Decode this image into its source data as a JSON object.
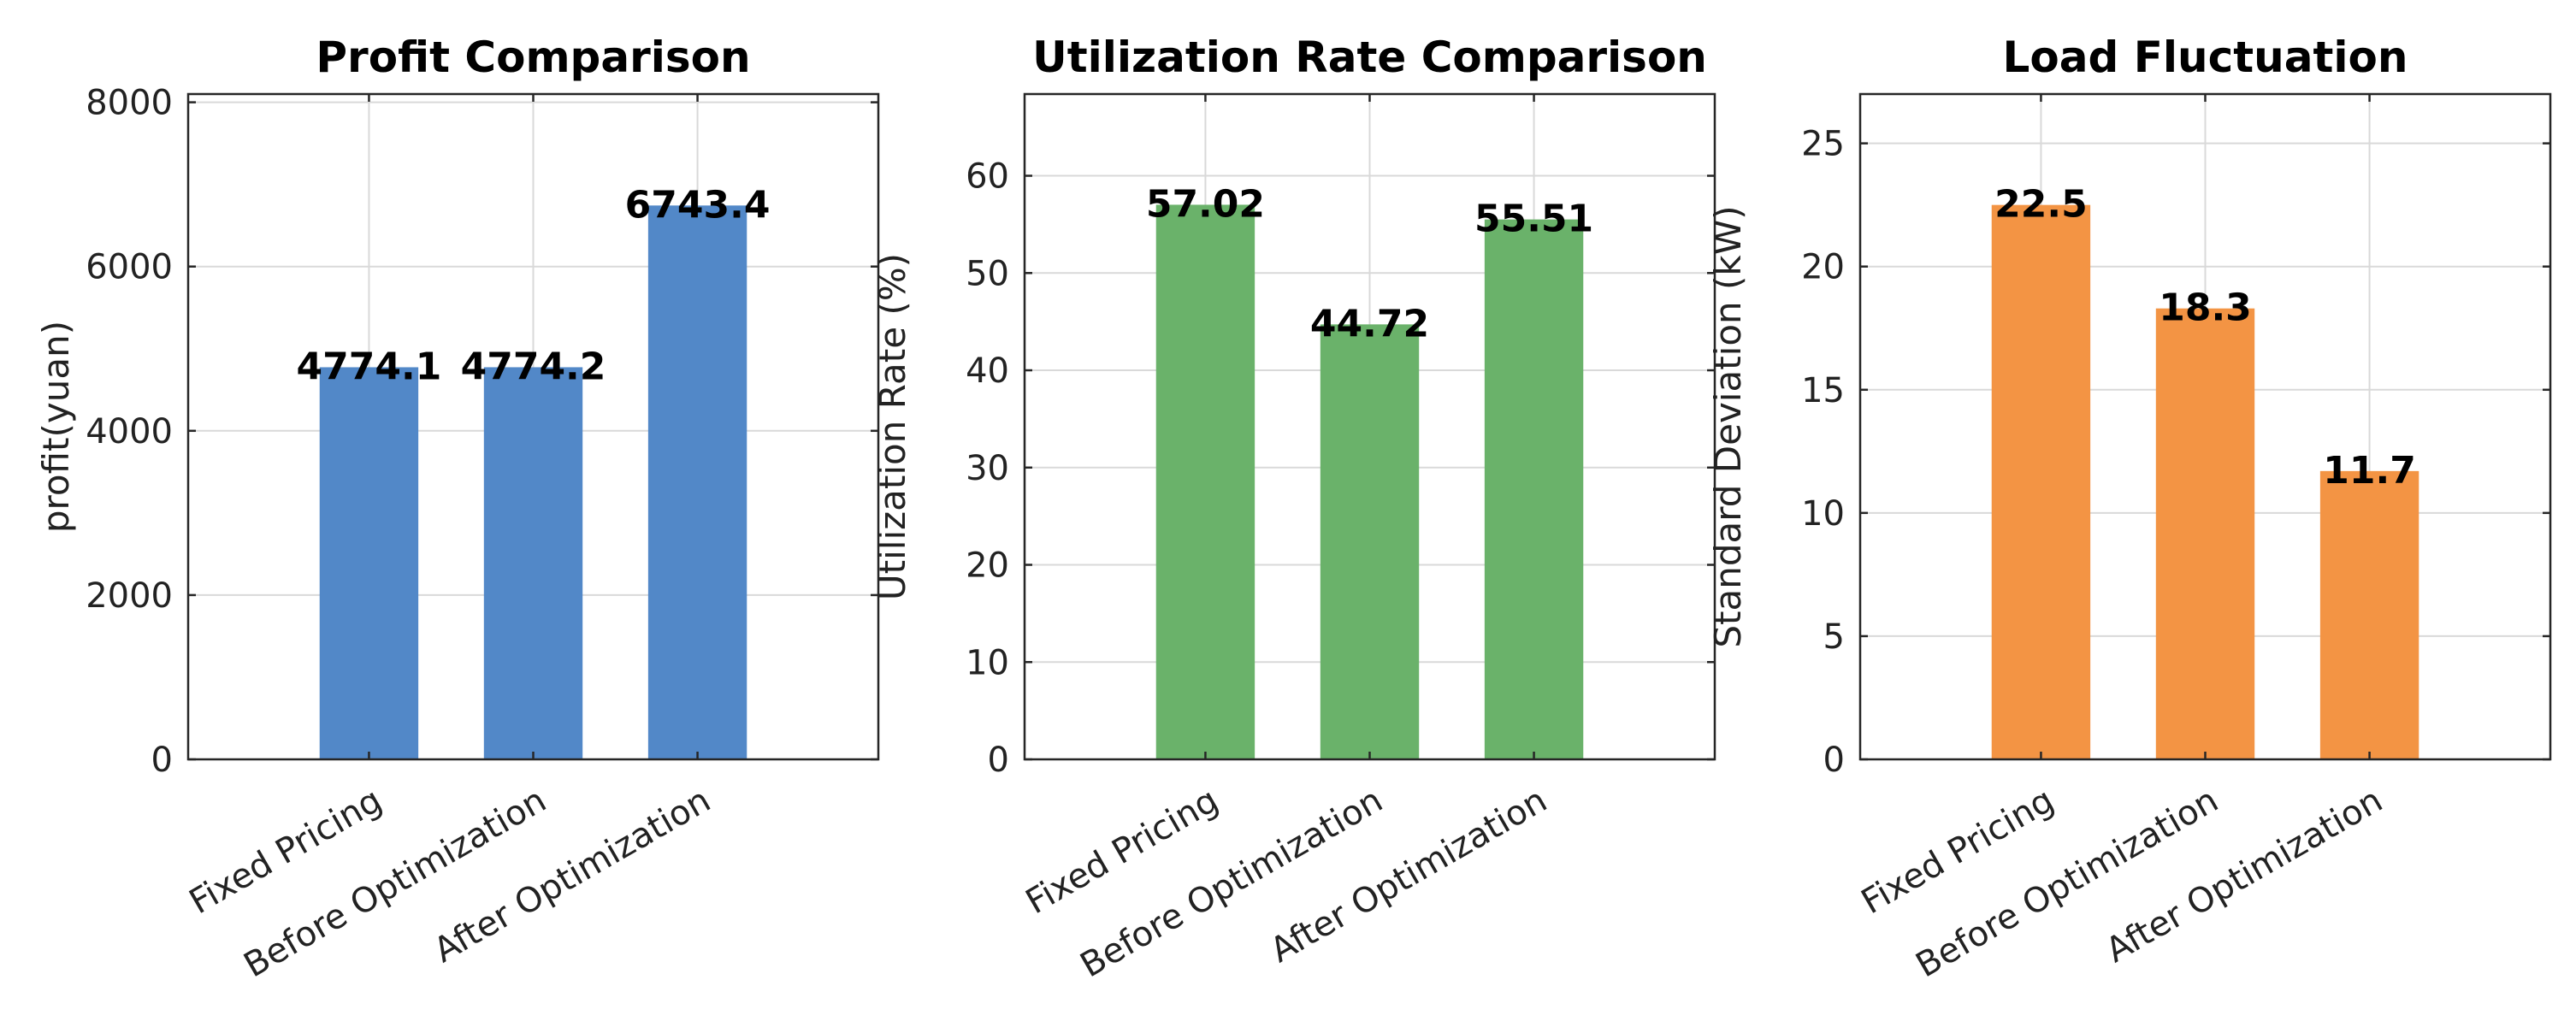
{
  "chart_data": [
    {
      "type": "bar",
      "title": "Profit Comparison",
      "ylabel": "profit(yuan)",
      "xlabel": "",
      "categories": [
        "Fixed Pricing",
        "Before Optimization",
        "After Optimization"
      ],
      "values": [
        4774.1,
        4774.2,
        6743.4
      ],
      "value_labels": [
        "4774.1",
        "4774.2",
        "6743.4"
      ],
      "ylim": [
        0,
        8100
      ],
      "yticks": [
        0,
        2000,
        4000,
        6000,
        8000
      ],
      "ytick_labels": [
        "0",
        "2000",
        "4000",
        "6000",
        "8000"
      ],
      "color": "#5288c8",
      "grid": true
    },
    {
      "type": "bar",
      "title": "Utilization Rate Comparison",
      "ylabel": "Utilization Rate (%)",
      "xlabel": "",
      "categories": [
        "Fixed Pricing",
        "Before Optimization",
        "After Optimization"
      ],
      "values": [
        57.02,
        44.72,
        55.51
      ],
      "value_labels": [
        "57.02",
        "44.72",
        "55.51"
      ],
      "ylim": [
        0,
        68.4
      ],
      "yticks": [
        0,
        10,
        20,
        30,
        40,
        50,
        60
      ],
      "ytick_labels": [
        "0",
        "10",
        "20",
        "30",
        "40",
        "50",
        "60"
      ],
      "color": "#6ab26a",
      "grid": true
    },
    {
      "type": "bar",
      "title": "Load Fluctuation",
      "ylabel": "Standard Deviation  (kW)",
      "xlabel": "",
      "categories": [
        "Fixed Pricing",
        "Before Optimization",
        "After Optimization"
      ],
      "values": [
        22.5,
        18.3,
        11.7
      ],
      "value_labels": [
        "22.5",
        "18.3",
        "11.7"
      ],
      "ylim": [
        0,
        27
      ],
      "yticks": [
        0,
        5,
        10,
        15,
        20,
        25
      ],
      "ytick_labels": [
        "0",
        "5",
        "10",
        "15",
        "20",
        "25"
      ],
      "color": "#f39444",
      "grid": true
    }
  ]
}
